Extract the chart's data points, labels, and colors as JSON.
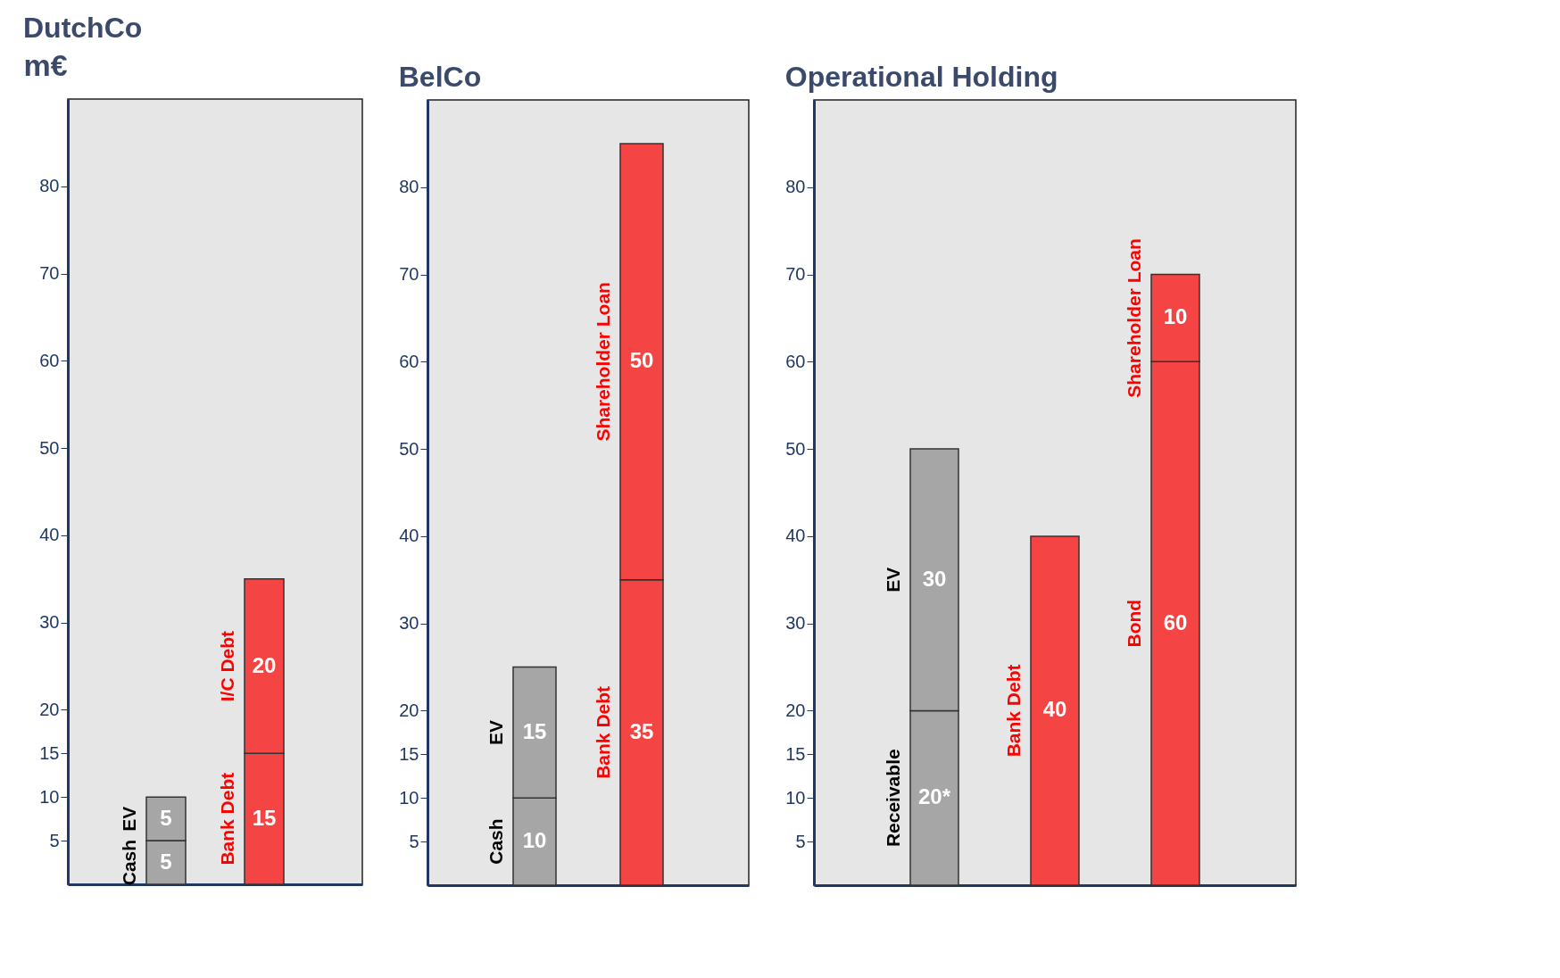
{
  "chart_data": [
    {
      "type": "bar",
      "title": "DutchCo",
      "ylabel": "m€",
      "categories": [
        null,
        null
      ],
      "stacked": true,
      "ylim": [
        0,
        90
      ],
      "yticks": [
        5,
        10,
        15,
        20,
        30,
        40,
        50,
        60,
        70,
        80
      ],
      "data_labels": true,
      "legend": false,
      "grid": false,
      "series": [
        {
          "name": "Cash",
          "color": "#a6a6a6",
          "values": [
            5,
            null
          ]
        },
        {
          "name": "EV",
          "color": "#a6a6a6",
          "values": [
            5,
            null
          ]
        },
        {
          "name": "Bank Debt",
          "color": "#f44444",
          "values": [
            null,
            15
          ]
        },
        {
          "name": "I/C Debt",
          "color": "#f44444",
          "values": [
            null,
            20
          ]
        }
      ]
    },
    {
      "type": "bar",
      "title": "BelCo",
      "categories": [
        null,
        null
      ],
      "stacked": true,
      "ylim": [
        0,
        90
      ],
      "yticks": [
        5,
        10,
        15,
        20,
        30,
        40,
        50,
        60,
        70,
        80
      ],
      "data_labels": true,
      "legend": false,
      "grid": false,
      "series": [
        {
          "name": "Cash",
          "color": "#a6a6a6",
          "values": [
            10,
            null
          ]
        },
        {
          "name": "EV",
          "color": "#a6a6a6",
          "values": [
            15,
            null
          ]
        },
        {
          "name": "Bank Debt",
          "color": "#f44444",
          "values": [
            null,
            35
          ]
        },
        {
          "name": "Shareholder Loan",
          "color": "#f44444",
          "values": [
            null,
            50
          ]
        }
      ]
    },
    {
      "type": "bar",
      "title": "Operational Holding",
      "categories": [
        null,
        null,
        null
      ],
      "stacked": true,
      "ylim": [
        0,
        90
      ],
      "yticks": [
        5,
        10,
        15,
        20,
        30,
        40,
        50,
        60,
        70,
        80
      ],
      "legend": false,
      "grid": false,
      "series": [
        {
          "name": "Receivable",
          "color": "#a6a6a6",
          "values": [
            20,
            null,
            null
          ],
          "value_labels": [
            "20*",
            null,
            null
          ]
        },
        {
          "name": "EV",
          "color": "#a6a6a6",
          "values": [
            30,
            null,
            null
          ],
          "value_labels": [
            "30",
            null,
            null
          ]
        },
        {
          "name": "Bank Debt",
          "color": "#f44444",
          "values": [
            null,
            40,
            null
          ],
          "value_labels": [
            null,
            "40",
            null
          ]
        },
        {
          "name": "Bond",
          "color": "#f44444",
          "values": [
            null,
            null,
            60
          ],
          "value_labels": [
            null,
            null,
            "60"
          ]
        },
        {
          "name": "Shareholder Loan",
          "color": "#f44444",
          "values": [
            null,
            null,
            10
          ],
          "value_labels": [
            null,
            null,
            "10"
          ]
        }
      ]
    }
  ]
}
